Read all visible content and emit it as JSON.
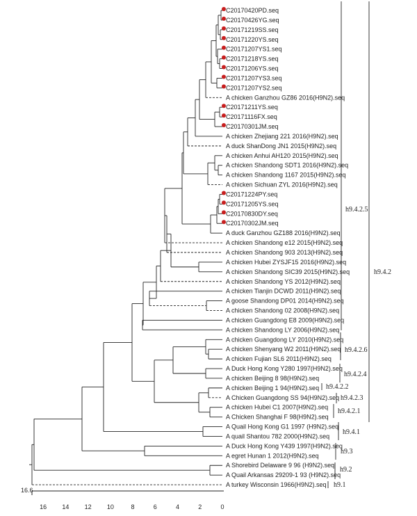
{
  "tree": {
    "scale_label": "16.6",
    "axis_ticks": [
      "16",
      "14",
      "12",
      "10",
      "8",
      "6",
      "4",
      "2",
      "0"
    ],
    "marker_color": "#c81e1e",
    "line_color": "#222222",
    "tips": [
      {
        "label": "C20170420PD.seq",
        "marked": true
      },
      {
        "label": "C20170426YG.seq",
        "marked": true
      },
      {
        "label": "C20171219SS.seq",
        "marked": true
      },
      {
        "label": "C20171220YS.seq",
        "marked": true
      },
      {
        "label": "C20171207YS1.seq",
        "marked": true
      },
      {
        "label": "C20171218YS.seq",
        "marked": true
      },
      {
        "label": "C20171206YS.seq",
        "marked": true
      },
      {
        "label": "C20171207YS3.seq",
        "marked": true
      },
      {
        "label": "C20171207YS2.seq",
        "marked": true
      },
      {
        "label": "A chicken Ganzhou GZ86 2016(H9N2).seq",
        "marked": false
      },
      {
        "label": "C20171211YS.seq",
        "marked": true
      },
      {
        "label": "C20171116FX.seq",
        "marked": true
      },
      {
        "label": "C20170301JM.seq",
        "marked": true
      },
      {
        "label": "A chicken Zhejiang 221 2016(H9N2).seq",
        "marked": false
      },
      {
        "label": "A duck ShanDong JN1 2015(H9N2).seq",
        "marked": false
      },
      {
        "label": "A chicken Anhui AH120 2015(H9N2).seq",
        "marked": false
      },
      {
        "label": "A chicken Shandong SDT1 2016(H9N2).seq",
        "marked": false
      },
      {
        "label": "A chicken Shandong 1167 2015(H9N2).seq",
        "marked": false
      },
      {
        "label": "A chicken Sichuan ZYL 2016(H9N2).seq",
        "marked": false
      },
      {
        "label": "C20171224PY.seq",
        "marked": true
      },
      {
        "label": "C20171205YS.seq",
        "marked": true
      },
      {
        "label": "C20170830DY.seq",
        "marked": true
      },
      {
        "label": "C20170302JM.seq",
        "marked": true
      },
      {
        "label": "A duck Ganzhou GZ188 2016(H9N2).seq",
        "marked": false
      },
      {
        "label": "A chicken Shandong e12 2015(H9N2).seq",
        "marked": false
      },
      {
        "label": "A chicken Shandong 903 2013(H9N2).seq",
        "marked": false
      },
      {
        "label": "A chicken Hubei ZYSJF15 2016(H9N2).seq",
        "marked": false
      },
      {
        "label": "A chicken Shandong SIC39 2015(H9N2).seq",
        "marked": false
      },
      {
        "label": "A chicken Shandong YS 2012(H9N2).seq",
        "marked": false
      },
      {
        "label": "A chicken Tianjin DCWD 2011(H9N2).seq",
        "marked": false
      },
      {
        "label": "A goose Shandong DP01 2014(H9N2).seq",
        "marked": false
      },
      {
        "label": "A chicken Shandong 02 2008(H9N2).seq",
        "marked": false
      },
      {
        "label": "A chicken Guangdong E8 2009(H9N2).seq",
        "marked": false
      },
      {
        "label": "A chicken Shandong LY 2006(H9N2).seq",
        "marked": false
      },
      {
        "label": "A chicken Guangdong LY 2010(H9N2).seq",
        "marked": false
      },
      {
        "label": "A chicken Shenyang W2 2011(H9N2).seq",
        "marked": false
      },
      {
        "label": "A chicken Fujian SL6 2011(H9N2).seq",
        "marked": false
      },
      {
        "label": "A Duck Hong Kong Y280 1997(H9N2).seq",
        "marked": false
      },
      {
        "label": "A chicken Beijing 8 98(H9N2).seq",
        "marked": false
      },
      {
        "label": "A chicken Beijing 1 94(H9N2).seq",
        "marked": false
      },
      {
        "label": "A Chicken Guangdong SS 94(H9N2).seq",
        "marked": false
      },
      {
        "label": "A chicken Hubei C1 2007(H9N2).seq",
        "marked": false
      },
      {
        "label": "A Chicken Shanghai F 98(H9N2).seq",
        "marked": false
      },
      {
        "label": "A Quail Hong Kong G1 1997 (H9N2).seq",
        "marked": false
      },
      {
        "label": "A quail Shantou 782 2000(H9N2).seq",
        "marked": false
      },
      {
        "label": "A Duck Hong Kong Y439 1997(H9N2).seq",
        "marked": false
      },
      {
        "label": "A egret Hunan 1 2012(H9N2).seq",
        "marked": false
      },
      {
        "label": "A Shorebird Delaware 9 96 (H9N2).seq",
        "marked": false
      },
      {
        "label": "A Quail Arkansas 29209-1 93 (H9N2).seq",
        "marked": false
      },
      {
        "label": "A turkey Wisconsin 1966(H9N2).seq",
        "marked": false
      }
    ],
    "clades": [
      {
        "label": "h9.4.2.5"
      },
      {
        "label": "h9.4.2"
      },
      {
        "label": "h9.4.2.6"
      },
      {
        "label": "h9.4.2.4"
      },
      {
        "label": "h9.4.2.2"
      },
      {
        "label": "h9.4.2.3"
      },
      {
        "label": "h9.4.2.1"
      },
      {
        "label": "h9.4.1"
      },
      {
        "label": "h9.3"
      },
      {
        "label": "h9.2"
      },
      {
        "label": "h9.1"
      }
    ]
  }
}
